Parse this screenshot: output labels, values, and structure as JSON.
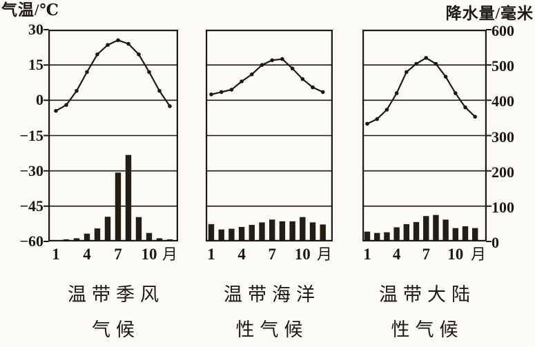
{
  "figure": {
    "left_axis_label": "气温/℃",
    "right_axis_label": "降水量/毫米",
    "left_tick_labels": [
      "30",
      "15",
      "0",
      "−15",
      "−30",
      "−45",
      "−60"
    ],
    "right_tick_labels": [
      "600",
      "500",
      "400",
      "300",
      "200",
      "100",
      "0"
    ],
    "month_tick_labels": [
      "1",
      "4",
      "7",
      "10"
    ],
    "month_unit_label": "月",
    "captions": [
      [
        "温带季风",
        "气候"
      ],
      [
        "温带海洋",
        "性气候"
      ],
      [
        "温带大陆",
        "性气候"
      ]
    ],
    "colors": {
      "ink": "#1c1914",
      "bar_fill": "#241d15",
      "paper": "#fcfbf7"
    }
  },
  "chart_data": [
    {
      "type": "combo-line-bar",
      "title": "温带季风气候",
      "caption_lines": [
        "温带季风",
        "气候"
      ],
      "months": [
        1,
        2,
        3,
        4,
        5,
        6,
        7,
        8,
        9,
        10,
        11,
        12
      ],
      "x_tick_labels": [
        "1",
        "4",
        "7",
        "10",
        "月"
      ],
      "series": [
        {
          "name": "气温",
          "type": "line",
          "unit": "℃",
          "values": [
            -4.5,
            -2,
            4,
            12,
            19.5,
            23.5,
            25.5,
            24,
            19.5,
            12,
            4,
            -2.5
          ]
        },
        {
          "name": "降水量",
          "type": "bar",
          "unit": "毫米",
          "values": [
            4,
            6,
            9,
            22,
            37,
            70,
            195,
            245,
            69,
            24,
            9,
            6
          ]
        }
      ],
      "left_axis": {
        "label": "气温/℃",
        "range": [
          -60,
          30
        ],
        "ticks": [
          30,
          15,
          0,
          -15,
          -30,
          -45,
          -60
        ]
      },
      "right_axis": {
        "label": "降水量/毫米",
        "range": [
          0,
          600
        ],
        "ticks": [
          600,
          500,
          400,
          300,
          200,
          100,
          0
        ]
      },
      "grid": true,
      "legend": false
    },
    {
      "type": "combo-line-bar",
      "title": "温带海洋性气候",
      "caption_lines": [
        "温带海洋",
        "性气候"
      ],
      "months": [
        1,
        2,
        3,
        4,
        5,
        6,
        7,
        8,
        9,
        10,
        11,
        12
      ],
      "x_tick_labels": [
        "1",
        "4",
        "7",
        "10",
        "月"
      ],
      "series": [
        {
          "name": "气温",
          "type": "line",
          "unit": "℃",
          "values": [
            2.5,
            3.5,
            4.5,
            8,
            11,
            15,
            17,
            17.5,
            13.5,
            9,
            5.5,
            3.5
          ]
        },
        {
          "name": "降水量",
          "type": "bar",
          "unit": "毫米",
          "values": [
            49,
            34,
            36,
            41,
            47,
            54,
            62,
            57,
            57,
            69,
            54,
            48
          ]
        }
      ],
      "left_axis": {
        "label": "气温/℃",
        "range": [
          -60,
          30
        ],
        "ticks": [
          30,
          15,
          0,
          -15,
          -30,
          -45,
          -60
        ]
      },
      "right_axis": {
        "label": "降水量/毫米",
        "range": [
          0,
          600
        ],
        "ticks": [
          600,
          500,
          400,
          300,
          200,
          100,
          0
        ]
      },
      "grid": true,
      "legend": false
    },
    {
      "type": "combo-line-bar",
      "title": "温带大陆性气候",
      "caption_lines": [
        "温带大陆",
        "性气候"
      ],
      "months": [
        1,
        2,
        3,
        4,
        5,
        6,
        7,
        8,
        9,
        10,
        11,
        12
      ],
      "x_tick_labels": [
        "1",
        "4",
        "7",
        "10",
        "月"
      ],
      "series": [
        {
          "name": "气温",
          "type": "line",
          "unit": "℃",
          "values": [
            -10,
            -8,
            -4,
            3,
            12,
            15.5,
            18,
            15.5,
            10,
            3,
            -3,
            -7
          ]
        },
        {
          "name": "降水量",
          "type": "bar",
          "unit": "毫米",
          "values": [
            28,
            24,
            26,
            40,
            49,
            55,
            72,
            75,
            62,
            38,
            43,
            38
          ]
        }
      ],
      "left_axis": {
        "label": "气温/℃",
        "range": [
          -60,
          30
        ],
        "ticks": [
          30,
          15,
          0,
          -15,
          -30,
          -45,
          -60
        ]
      },
      "right_axis": {
        "label": "降水量/毫米",
        "range": [
          0,
          600
        ],
        "ticks": [
          600,
          500,
          400,
          300,
          200,
          100,
          0
        ]
      },
      "grid": true,
      "legend": false
    }
  ]
}
